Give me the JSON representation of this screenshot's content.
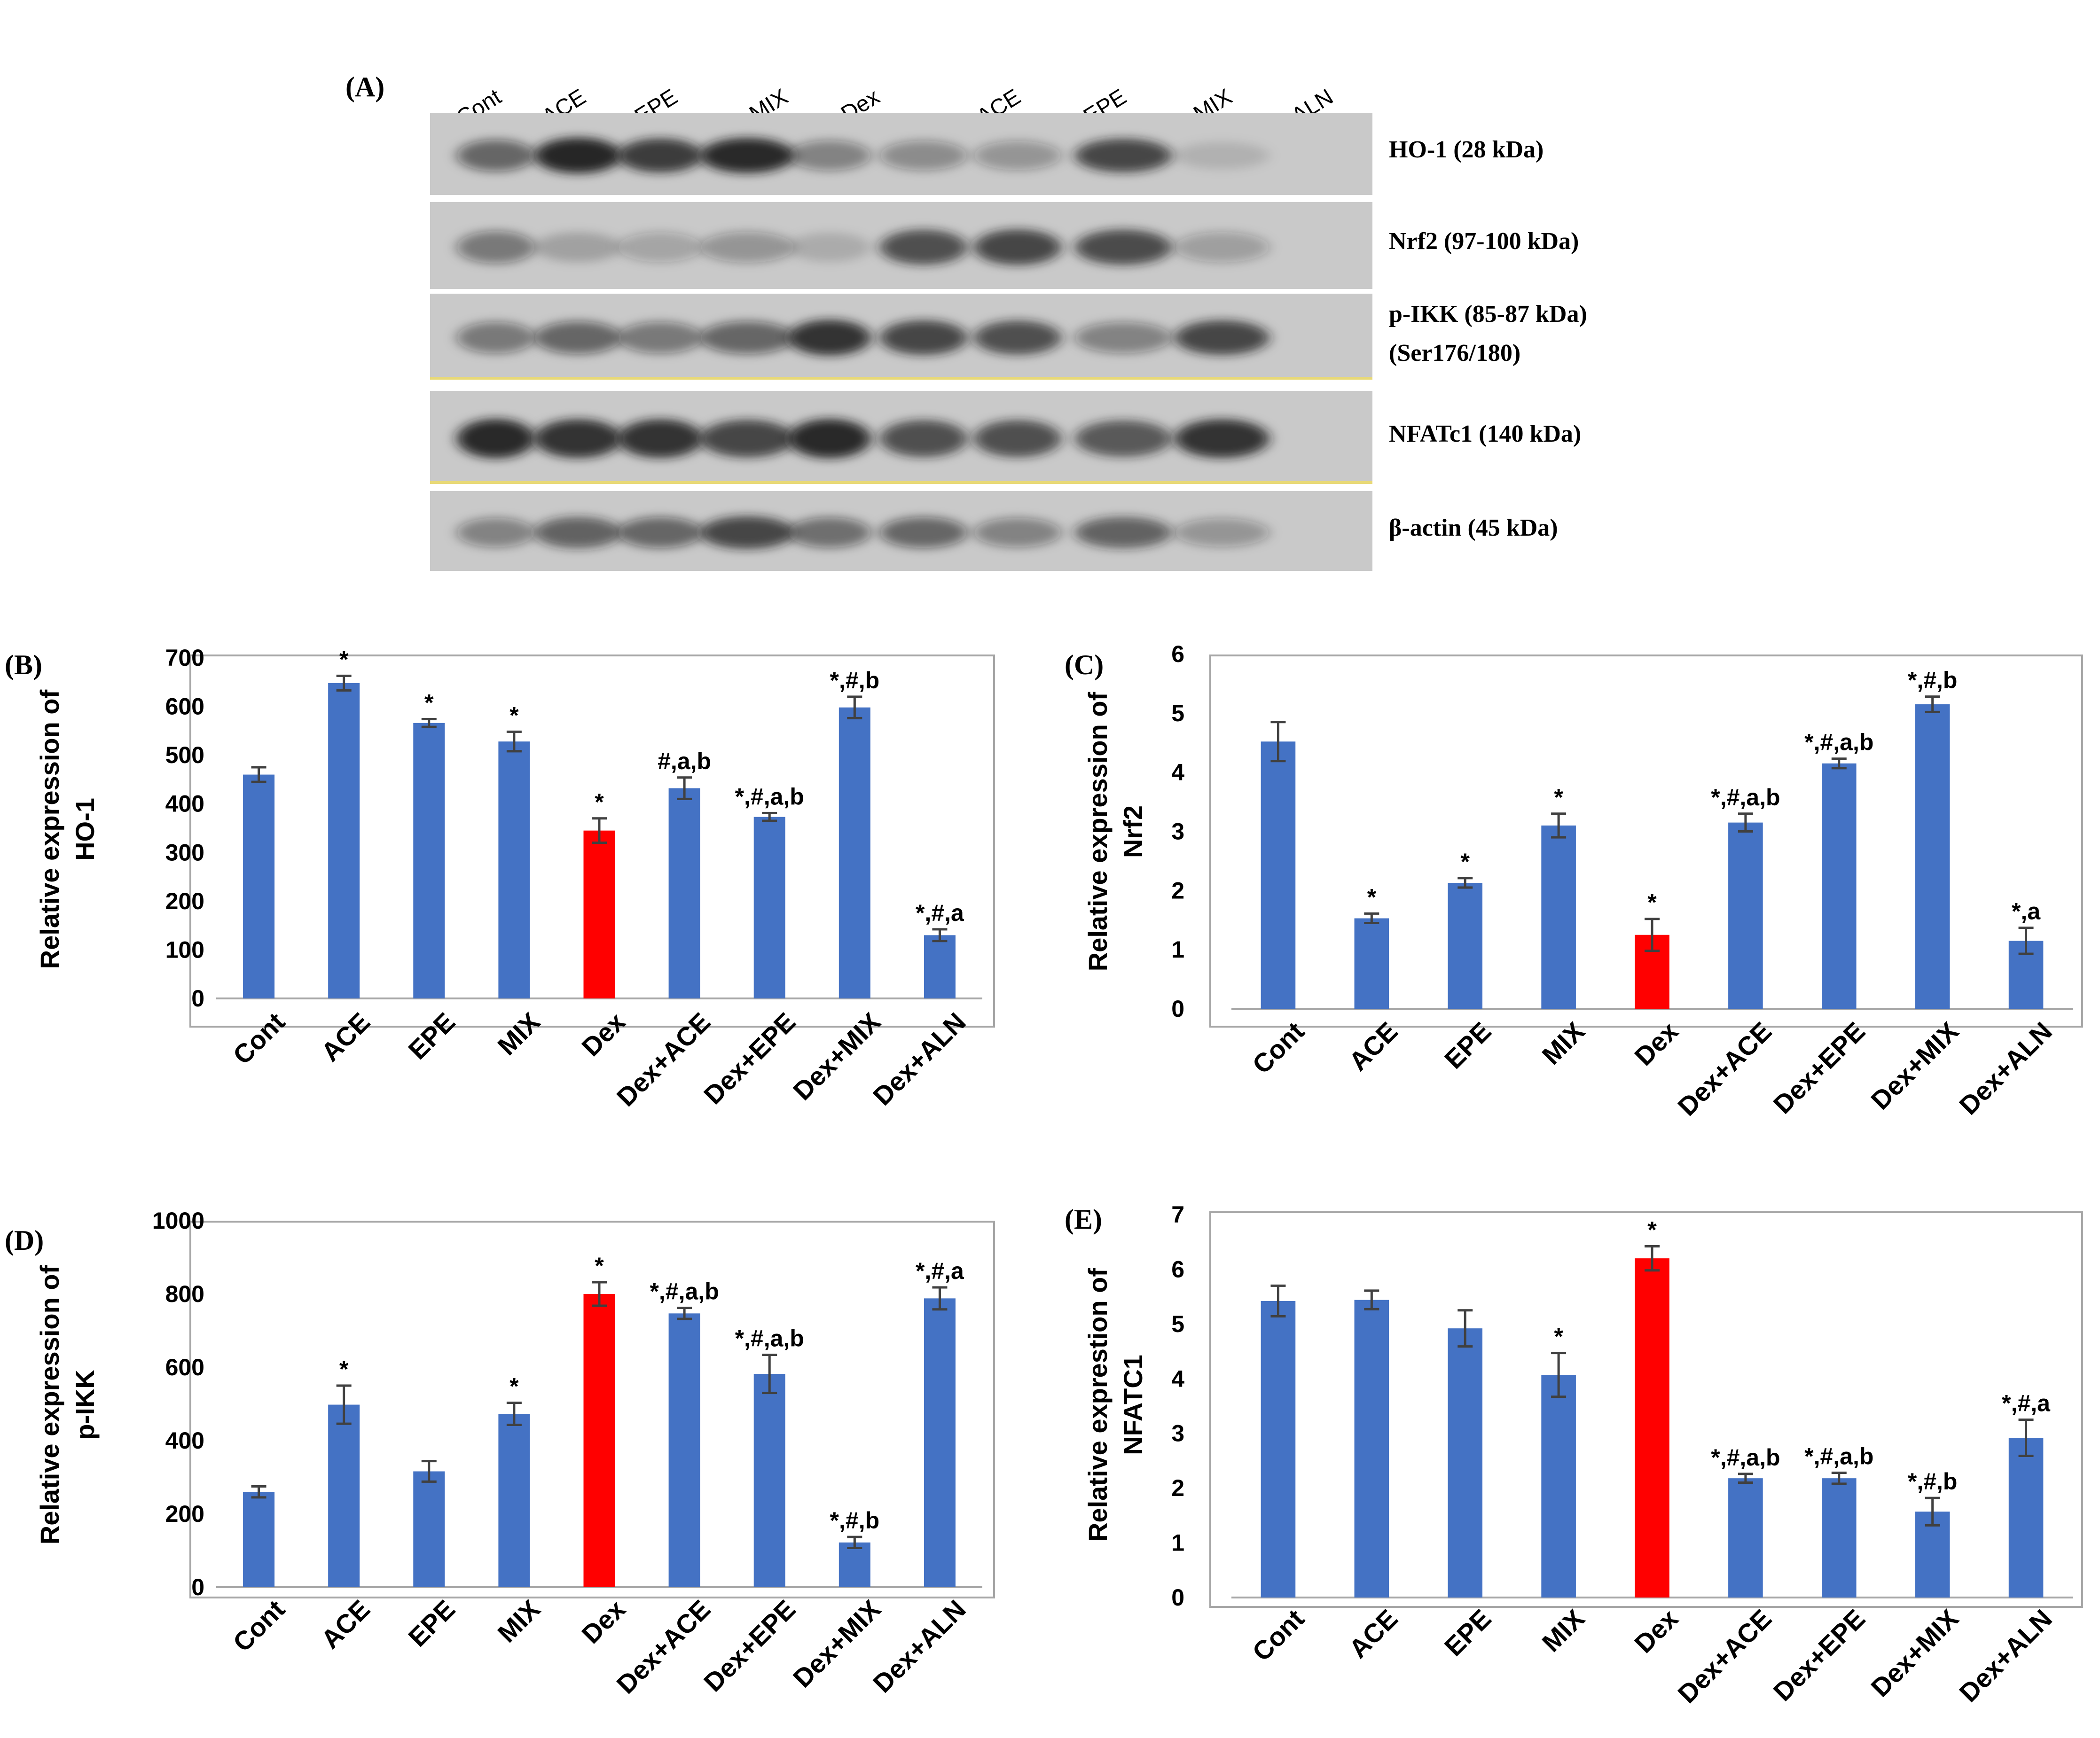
{
  "blot": {
    "panel_label": "(A)",
    "lanes": [
      "Cont",
      "ACE",
      "EPE",
      "MIX",
      "Dex",
      "Dex+ ACE",
      "Dex+ EPE",
      "Dex+ MIX",
      "Dex+ ALN"
    ],
    "rows": [
      {
        "label": "HO-1 (28 kDa)",
        "sublabel": ""
      },
      {
        "label": "Nrf2 (97-100 kDa)",
        "sublabel": ""
      },
      {
        "label": "p-IKK (85-87 kDa)",
        "sublabel": "(Ser176/180)"
      },
      {
        "label": "NFATc1 (140 kDa)",
        "sublabel": ""
      },
      {
        "label": "β-actin (45 kDa)",
        "sublabel": ""
      }
    ],
    "band_intensity": [
      [
        0.55,
        0.95,
        0.8,
        0.9,
        0.4,
        0.35,
        0.3,
        0.75,
        0.12
      ],
      [
        0.45,
        0.2,
        0.22,
        0.3,
        0.15,
        0.7,
        0.75,
        0.72,
        0.25
      ],
      [
        0.45,
        0.55,
        0.45,
        0.55,
        0.85,
        0.75,
        0.7,
        0.4,
        0.75
      ],
      [
        0.9,
        0.85,
        0.85,
        0.75,
        0.9,
        0.7,
        0.7,
        0.65,
        0.85
      ],
      [
        0.4,
        0.6,
        0.55,
        0.75,
        0.5,
        0.55,
        0.4,
        0.6,
        0.3
      ]
    ]
  },
  "colors": {
    "bar": "#4472C4",
    "highlight": "#FF0000",
    "axis": "#a6a6a6",
    "text": "#000000",
    "error": "#404040",
    "blot_bg": "#c9c9c9",
    "band": "#1a1a1a",
    "divider": "#e8d978"
  },
  "chart_data": [
    {
      "id": "B",
      "panel_label": "(B)",
      "type": "bar",
      "ylabel_lines": [
        "Relative expression of",
        "HO-1"
      ],
      "categories": [
        "Cont",
        "ACE",
        "EPE",
        "MIX",
        "Dex",
        "Dex+ACE",
        "Dex+EPE",
        "Dex+MIX",
        "Dex+ALN"
      ],
      "values": [
        460,
        648,
        566,
        528,
        345,
        432,
        373,
        598,
        130
      ],
      "errors": [
        15,
        15,
        8,
        20,
        25,
        22,
        8,
        22,
        12
      ],
      "annotations": [
        "",
        "*",
        "*",
        "*",
        "*",
        "#,a,b",
        "*,#,a,b",
        "*,#,b",
        "*,#,a"
      ],
      "highlight_index": 4,
      "ylim": [
        0,
        700
      ],
      "yticks": [
        0,
        100,
        200,
        300,
        400,
        500,
        600,
        700
      ]
    },
    {
      "id": "C",
      "panel_label": "(C)",
      "type": "bar",
      "ylabel_lines": [
        "Relative expression  of",
        "Nrf2"
      ],
      "categories": [
        "Cont",
        "ACE",
        "EPE",
        "MIX",
        "Dex",
        "Dex+ACE",
        "Dex+EPE",
        "Dex+MIX",
        "Dex+ALN"
      ],
      "values": [
        4.52,
        1.53,
        2.13,
        3.1,
        1.25,
        3.15,
        4.15,
        5.15,
        1.15
      ],
      "errors": [
        0.33,
        0.08,
        0.08,
        0.2,
        0.27,
        0.15,
        0.08,
        0.13,
        0.22
      ],
      "annotations": [
        "",
        "*",
        "*",
        "*",
        "*",
        "*,#,a,b",
        "*,#,a,b",
        "*,#,b",
        "*,a"
      ],
      "highlight_index": 4,
      "ylim": [
        0,
        6
      ],
      "yticks": [
        0,
        1,
        2,
        3,
        4,
        5,
        6
      ]
    },
    {
      "id": "D",
      "panel_label": "(D)",
      "type": "bar",
      "ylabel_lines": [
        "Relative expression of",
        "p-IKK"
      ],
      "categories": [
        "Cont",
        "ACE",
        "EPE",
        "MIX",
        "Dex",
        "Dex+ACE",
        "Dex+EPE",
        "Dex+MIX",
        "Dex+ALN"
      ],
      "values": [
        260,
        498,
        316,
        473,
        800,
        747,
        582,
        122,
        788
      ],
      "errors": [
        15,
        52,
        28,
        30,
        32,
        15,
        52,
        15,
        30
      ],
      "annotations": [
        "",
        "*",
        "",
        "*",
        "*",
        "*,#,a,b",
        "*,#,a,b",
        "*,#,b",
        "*,#,a"
      ],
      "highlight_index": 4,
      "ylim": [
        0,
        1000
      ],
      "yticks": [
        0,
        200,
        400,
        600,
        800,
        1000
      ]
    },
    {
      "id": "E",
      "panel_label": "(E)",
      "type": "bar",
      "ylabel_lines": [
        "Relative exprestion of",
        "NFATC1"
      ],
      "categories": [
        "Cont",
        "ACE",
        "EPE",
        "MIX",
        "Dex",
        "Dex+ACE",
        "Dex+EPE",
        "Dex+MIX",
        "Dex+ALN"
      ],
      "values": [
        5.42,
        5.44,
        4.92,
        4.07,
        6.2,
        2.18,
        2.18,
        1.57,
        2.92
      ],
      "errors": [
        0.28,
        0.17,
        0.33,
        0.4,
        0.22,
        0.08,
        0.1,
        0.25,
        0.33
      ],
      "annotations": [
        "",
        "",
        "",
        "*",
        "*",
        "*,#,a,b",
        "*,#,a,b",
        "*,#,b",
        "*,#,a"
      ],
      "highlight_index": 4,
      "ylim": [
        0,
        7
      ],
      "yticks": [
        0,
        1,
        2,
        3,
        4,
        5,
        6,
        7
      ]
    }
  ]
}
